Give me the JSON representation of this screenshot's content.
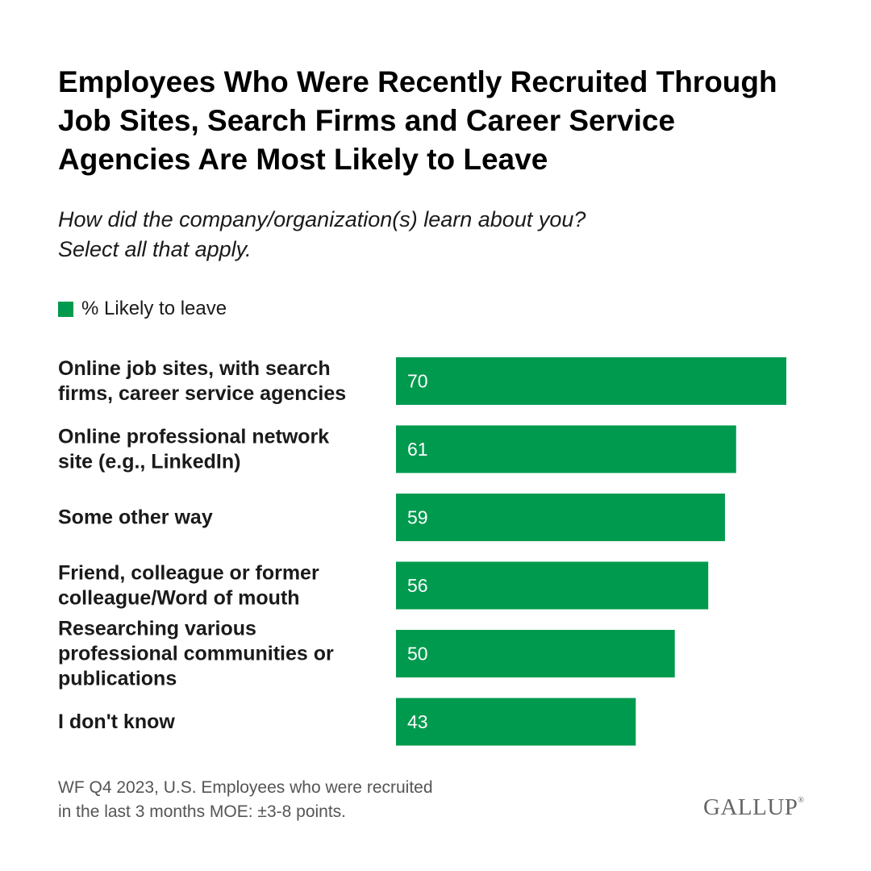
{
  "title": "Employees Who Were Recently Recruited Through Job Sites, Search Firms and Career Service Agencies Are Most Likely to Leave",
  "subtitle_line1": "How did the company/organization(s) learn about you?",
  "subtitle_line2": "Select all that apply.",
  "legend": {
    "label": "% Likely to leave",
    "color": "#009A4E"
  },
  "chart_data": {
    "type": "bar",
    "orientation": "horizontal",
    "title": "Employees Who Were Recently Recruited Through Job Sites, Search Firms and Career Service Agencies Are Most Likely to Leave",
    "categories": [
      [
        "Online job sites, with search",
        "firms, career service agencies"
      ],
      [
        "Online professional network",
        "site (e.g., LinkedIn)"
      ],
      [
        "Some other way"
      ],
      [
        "Friend, colleague or former",
        "colleague/Word of mouth"
      ],
      [
        "Researching various",
        "professional communities or",
        "publications"
      ],
      [
        "I don't know"
      ]
    ],
    "series": [
      {
        "name": "% Likely to leave",
        "values": [
          70,
          61,
          59,
          56,
          50,
          43
        ],
        "color": "#009A4E"
      }
    ],
    "xlim": [
      0,
      100
    ],
    "grid": false,
    "legend_position": "top-left",
    "data_labels": true
  },
  "footnote_line1": "WF Q4 2023, U.S. Employees who were recruited",
  "footnote_line2": "in the last 3 months MOE: ±3-8 points.",
  "logo": {
    "text": "GALLUP",
    "mark": "®"
  }
}
